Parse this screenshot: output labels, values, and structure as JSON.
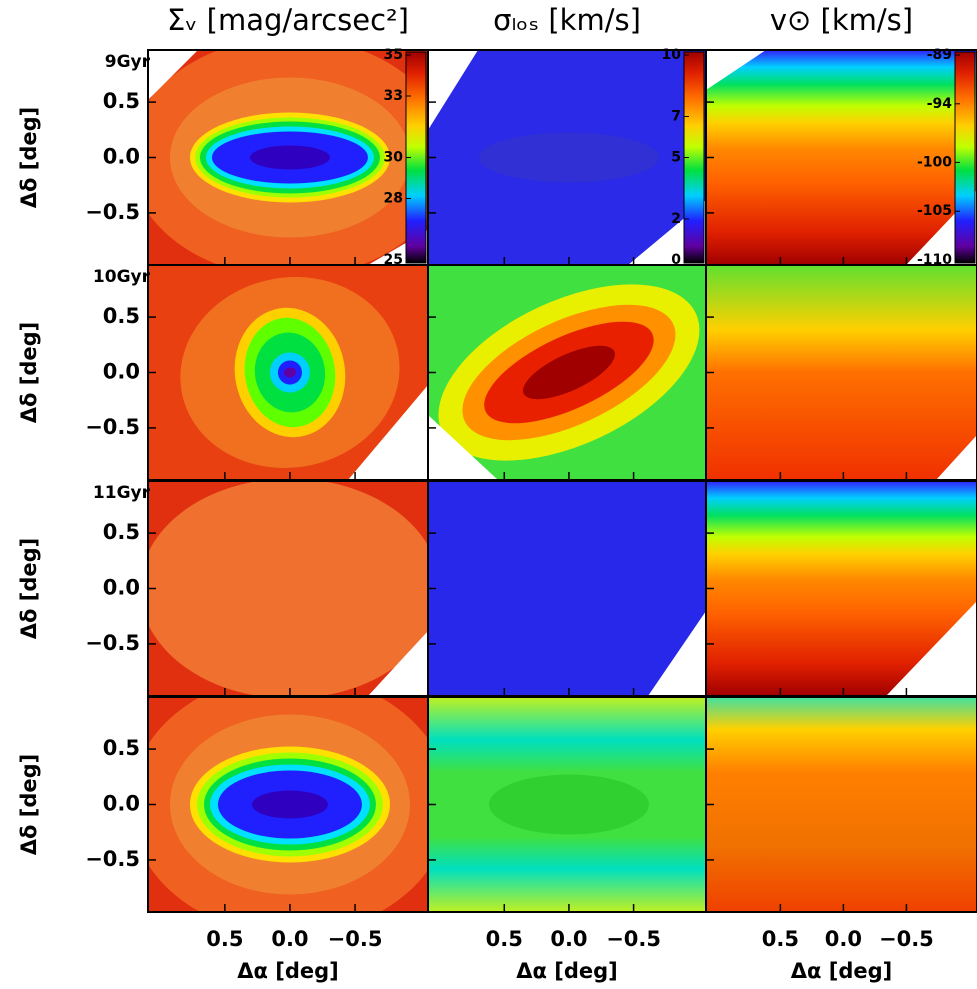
{
  "chart_data": {
    "type": "map-grid",
    "column_titles": [
      "Σᵥ [mag/arcsec²]",
      "σₗₒₛ [km/s]",
      "v⊙ [km/s]"
    ],
    "row_labels": [
      "9Gyr",
      "10Gyr",
      "11Gyr"
    ],
    "xlabel": "Δα [deg]",
    "ylabel": "Δδ [deg]",
    "xlim": [
      1.09,
      -1.06
    ],
    "xticks": [
      0.5,
      {
        "value": 0,
        "label": "0.0"
      },
      {
        "value": -0.5,
        "label": "−0.5"
      }
    ],
    "ylim": [
      -0.97,
      0.97
    ],
    "yticks": [
      {
        "value": -0.5,
        "label": "−0.5"
      },
      {
        "value": 0,
        "label": "0.0"
      },
      0.5
    ],
    "colorbars": [
      {
        "lim": [
          25,
          35
        ],
        "ticks": [
          25,
          28,
          30,
          33,
          35
        ]
      },
      {
        "lim": [
          0,
          10
        ],
        "ticks": [
          0,
          2,
          5,
          7,
          10
        ]
      },
      {
        "lim": [
          -110,
          -89
        ],
        "ticks": [
          -110,
          -105,
          -100,
          -94,
          -89
        ]
      }
    ]
  }
}
